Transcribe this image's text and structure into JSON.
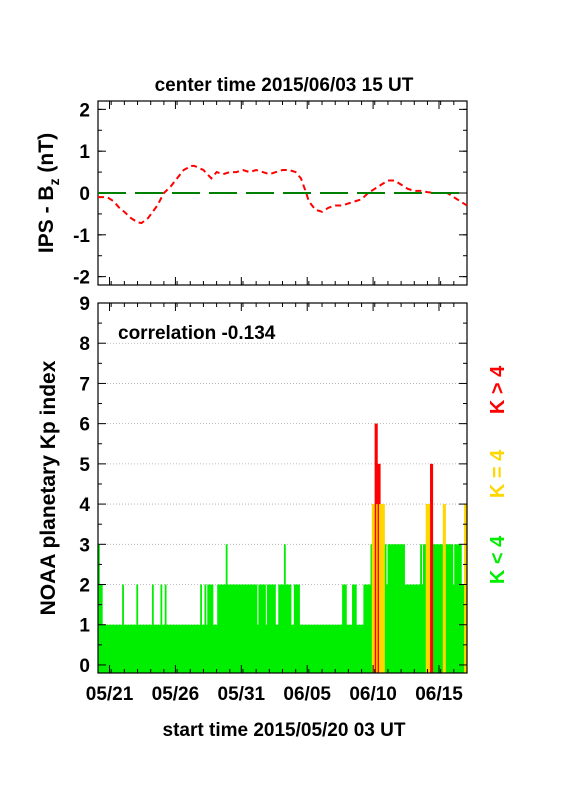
{
  "chart_data": [
    {
      "type": "line",
      "title": "center time 2015/06/03 15 UT",
      "ylabel_main": "IPS - B",
      "ylabel_sub": "z",
      "ylabel_unit": " (nT)",
      "ylim": [
        -2.2,
        2.2
      ],
      "yticks": [
        "2",
        "1",
        "0",
        "-1",
        "-2"
      ],
      "xlim_days": [
        0,
        28
      ],
      "series": [
        {
          "color": "#ff0000",
          "style": "dashed",
          "x": [
            0,
            0.7,
            1.2,
            1.6,
            2,
            2.5,
            3,
            3.3,
            3.8,
            4.5,
            5,
            5.5,
            6,
            6.5,
            6.8,
            7,
            7.3,
            8,
            8.6,
            9,
            9.5,
            10,
            10.5,
            11,
            11.5,
            12,
            12.5,
            13,
            13.5,
            14,
            14.5,
            15,
            15.4,
            15.8,
            16,
            16.5,
            17,
            17.5,
            18,
            18.5,
            19,
            19.5,
            20,
            20.5,
            21,
            21.5,
            22,
            22.5,
            23,
            23.5,
            24,
            24.5,
            25,
            25.5,
            26,
            26.5,
            27,
            27.5,
            28
          ],
          "y": [
            -0.1,
            -0.1,
            -0.2,
            -0.35,
            -0.45,
            -0.6,
            -0.7,
            -0.72,
            -0.6,
            -0.3,
            0,
            0.15,
            0.35,
            0.55,
            0.6,
            0.65,
            0.65,
            0.55,
            0.35,
            0.5,
            0.45,
            0.5,
            0.5,
            0.55,
            0.5,
            0.55,
            0.5,
            0.45,
            0.5,
            0.55,
            0.55,
            0.5,
            0.35,
            0,
            -0.2,
            -0.4,
            -0.45,
            -0.35,
            -0.3,
            -0.3,
            -0.25,
            -0.2,
            -0.15,
            0,
            0.1,
            0.2,
            0.3,
            0.3,
            0.2,
            0.1,
            0.05,
            0.05,
            0.02,
            0,
            0,
            0,
            -0.1,
            -0.2,
            -0.3
          ]
        },
        {
          "color": "#008000",
          "style": "long-dash",
          "x": [
            0,
            28
          ],
          "y": [
            0,
            0
          ]
        }
      ]
    },
    {
      "type": "bar",
      "annotation": "correlation -0.134",
      "ylabel": "NOAA planetary Kp index",
      "xlabel": "start time 2015/05/20 03 UT",
      "ylim": [
        -0.2,
        9
      ],
      "yticks": [
        "0",
        "1",
        "2",
        "3",
        "4",
        "5",
        "6",
        "7",
        "8",
        "9"
      ],
      "xticks": [
        {
          "day": 0.875,
          "label": "05/21"
        },
        {
          "day": 5.875,
          "label": "05/26"
        },
        {
          "day": 10.875,
          "label": "05/31"
        },
        {
          "day": 15.875,
          "label": "06/05"
        },
        {
          "day": 20.875,
          "label": "06/10"
        },
        {
          "day": 25.875,
          "label": "06/15"
        }
      ],
      "grid": "horizontal dotted at each integer",
      "legend": [
        {
          "label": "K < 4",
          "color": "#00ee00"
        },
        {
          "label": "K = 4",
          "color": "#ffd700"
        },
        {
          "label": "K > 4",
          "color": "#ff0000"
        }
      ],
      "interval_hours": 3,
      "kp_values": [
        3,
        2,
        2,
        1,
        1,
        1,
        1,
        1,
        1,
        1,
        1,
        1,
        1,
        1,
        1,
        1,
        1,
        2,
        1,
        1,
        1,
        1,
        1,
        1,
        1,
        1,
        1,
        2,
        1,
        1,
        1,
        1,
        1,
        1,
        1,
        1,
        1,
        1,
        2,
        1,
        1,
        1,
        1,
        1,
        2,
        1,
        1,
        2,
        1,
        1,
        1,
        1,
        1,
        1,
        1,
        1,
        1,
        1,
        1,
        1,
        1,
        1,
        1,
        1,
        1,
        1,
        1,
        1,
        1,
        1,
        1,
        1,
        2,
        1,
        1,
        2,
        1,
        2,
        2,
        2,
        2,
        1,
        1,
        1,
        2,
        2,
        2,
        2,
        2,
        2,
        3,
        2,
        2,
        2,
        2,
        2,
        2,
        2,
        2,
        2,
        2,
        2,
        2,
        2,
        2,
        2,
        2,
        2,
        2,
        2,
        2,
        2,
        1,
        2,
        2,
        2,
        2,
        2,
        1,
        2,
        2,
        2,
        2,
        2,
        2,
        1,
        1,
        2,
        2,
        2,
        2,
        3,
        2,
        2,
        2,
        2,
        1,
        1,
        2,
        2,
        2,
        2,
        1,
        1,
        1,
        1,
        1,
        1,
        1,
        1,
        1,
        1,
        1,
        1,
        1,
        1,
        1,
        1,
        1,
        1,
        1,
        1,
        1,
        1,
        1,
        1,
        1,
        1,
        1,
        1,
        1,
        1,
        2,
        2,
        2,
        1,
        1,
        1,
        1,
        2,
        2,
        2,
        1,
        1,
        1,
        1,
        1,
        2,
        2,
        2,
        2,
        2,
        3,
        4,
        4,
        6,
        4,
        5,
        4,
        4,
        4,
        3,
        3,
        2,
        3,
        3,
        3,
        3,
        3,
        3,
        3,
        3,
        3,
        3,
        3,
        3,
        2,
        2,
        2,
        2,
        2,
        2,
        2,
        2,
        2,
        2,
        2,
        3,
        2,
        3,
        3,
        4,
        3,
        4,
        5,
        3,
        3,
        3,
        3,
        3,
        3,
        3,
        3,
        4,
        3,
        3,
        3,
        3,
        3,
        3,
        2,
        3,
        3,
        3,
        3,
        3,
        2,
        2,
        4,
        3
      ]
    }
  ],
  "colors": {
    "kp_low": "#00ee00",
    "kp_equal": "#ffd700",
    "kp_high": "#ff0000"
  }
}
